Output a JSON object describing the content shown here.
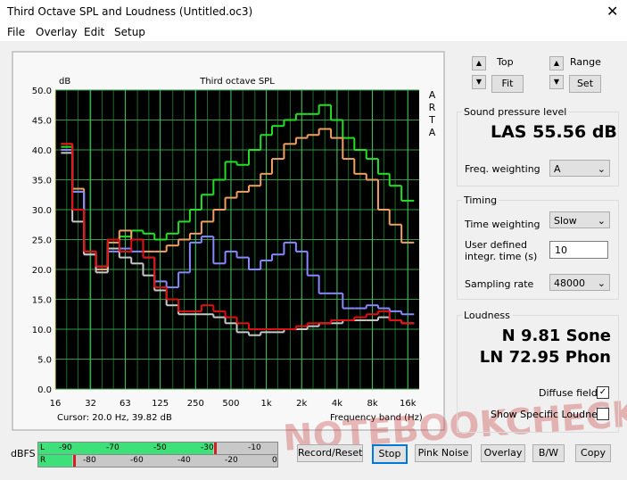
{
  "window": {
    "title": "Third Octave SPL and Loudness (Untitled.oc3)"
  },
  "menu": [
    "File",
    "Overlay",
    "Edit",
    "Setup"
  ],
  "plot": {
    "type": "step",
    "title": "Third octave SPL",
    "y_unit": "dB",
    "side_label": "ARTA",
    "x_label": "Frequency band (Hz)",
    "cursor": "Cursor:    20.0 Hz, 39.82 dB",
    "log_x": true,
    "grid": true,
    "xlim": [
      16,
      20000
    ],
    "ylim": [
      0,
      50
    ],
    "xticks": [
      16,
      32,
      63,
      125,
      250,
      500,
      {
        "value": 1000,
        "label": "1k"
      },
      {
        "value": 2000,
        "label": "2k"
      },
      {
        "value": 4000,
        "label": "4k"
      },
      {
        "value": 8000,
        "label": "8k"
      },
      {
        "value": 16000,
        "label": "16k"
      }
    ],
    "yticks": [
      {
        "value": 0,
        "label": "0.0"
      },
      {
        "value": 5,
        "label": "5.0"
      },
      {
        "value": 10,
        "label": "10.0"
      },
      {
        "value": 15,
        "label": "15.0"
      },
      {
        "value": 20,
        "label": "20.0"
      },
      {
        "value": 25,
        "label": "25.0"
      },
      {
        "value": 30,
        "label": "30.0"
      },
      {
        "value": 35,
        "label": "35.0"
      },
      {
        "value": 40,
        "label": "40.0"
      },
      {
        "value": 45,
        "label": "45.0"
      },
      {
        "value": 50,
        "label": "50.0"
      }
    ],
    "x": [
      20,
      25,
      31.5,
      40,
      50,
      63,
      80,
      100,
      125,
      160,
      200,
      250,
      315,
      400,
      500,
      630,
      800,
      1000,
      1250,
      1600,
      2000,
      2500,
      3150,
      4000,
      5000,
      6300,
      8000,
      10000,
      12500,
      16000
    ],
    "series": [
      {
        "color": "#22e022",
        "values": [
          40.5,
          33,
          23,
          20.5,
          25,
          25.5,
          26.5,
          26,
          25,
          26,
          28,
          30,
          32.5,
          35,
          38,
          37.5,
          40,
          42.5,
          44,
          45,
          46,
          46,
          47.5,
          45,
          42,
          40,
          38.5,
          36,
          34,
          31.5
        ]
      },
      {
        "color": "#f0a060",
        "values": [
          41,
          33.5,
          23,
          20,
          24.5,
          26.5,
          25,
          23,
          23,
          24,
          25,
          26,
          28,
          30,
          32,
          33,
          34,
          36,
          38.5,
          41,
          42,
          42.5,
          43.5,
          42,
          38.5,
          36,
          35,
          30,
          27.5,
          24.5
        ]
      },
      {
        "color": "#8888ff",
        "values": [
          40,
          33,
          22.5,
          20.5,
          23,
          23.5,
          23,
          22,
          18,
          17,
          19.5,
          24.5,
          25.5,
          21,
          23,
          22,
          20,
          21.5,
          22.5,
          24.5,
          23,
          19,
          16,
          16,
          13.5,
          13.5,
          14,
          13.5,
          13,
          12.5
        ]
      },
      {
        "color": "#c8c8c8",
        "values": [
          39.5,
          28,
          22.5,
          19.5,
          23.5,
          22,
          21,
          19,
          16.5,
          14,
          12.5,
          12.5,
          12.5,
          12,
          11,
          9.5,
          9,
          9.5,
          9.5,
          10,
          10,
          10.5,
          11,
          11,
          11.5,
          11.5,
          11.5,
          12,
          11.5,
          11
        ]
      },
      {
        "color": "#e01010",
        "values": [
          41,
          30,
          23,
          20.5,
          25,
          23,
          25,
          22,
          17,
          15,
          13,
          13,
          14,
          13,
          12,
          11,
          10,
          10,
          10,
          10,
          10.5,
          11,
          11,
          11.5,
          11.5,
          12,
          12.5,
          13,
          11.5,
          11
        ]
      }
    ]
  },
  "controls": {
    "top": "Top",
    "fit": "Fit",
    "range": "Range",
    "set": "Set"
  },
  "spl": {
    "group": "Sound pressure level",
    "reading": "LAS 55.56 dB",
    "weighting_label": "Freq. weighting",
    "weighting": "A"
  },
  "timing": {
    "group": "Timing",
    "time_weighting_label": "Time weighting",
    "time_weighting": "Slow",
    "integr_label": "User defined integr. time (s)",
    "integr": "10",
    "rate_label": "Sampling rate",
    "rate": "48000"
  },
  "loudness": {
    "group": "Loudness",
    "n": "N 9.81 Sone",
    "ln": "LN 72.95 Phon",
    "diffuse": "Diffuse field",
    "specific": "Show Specific Loudness"
  },
  "meter": {
    "label": "dBFS",
    "l": "L",
    "r": "R",
    "l_scale": [
      "-90",
      "-70",
      "-50",
      "-30",
      "-10"
    ],
    "r_scale": [
      "-80",
      "-60",
      "-40",
      "-20",
      "0"
    ]
  },
  "buttons": [
    "Record/Reset",
    "Stop",
    "Pink Noise",
    "Overlay",
    "B/W",
    "Copy"
  ],
  "watermark": "NOTEBOOKCHECK"
}
